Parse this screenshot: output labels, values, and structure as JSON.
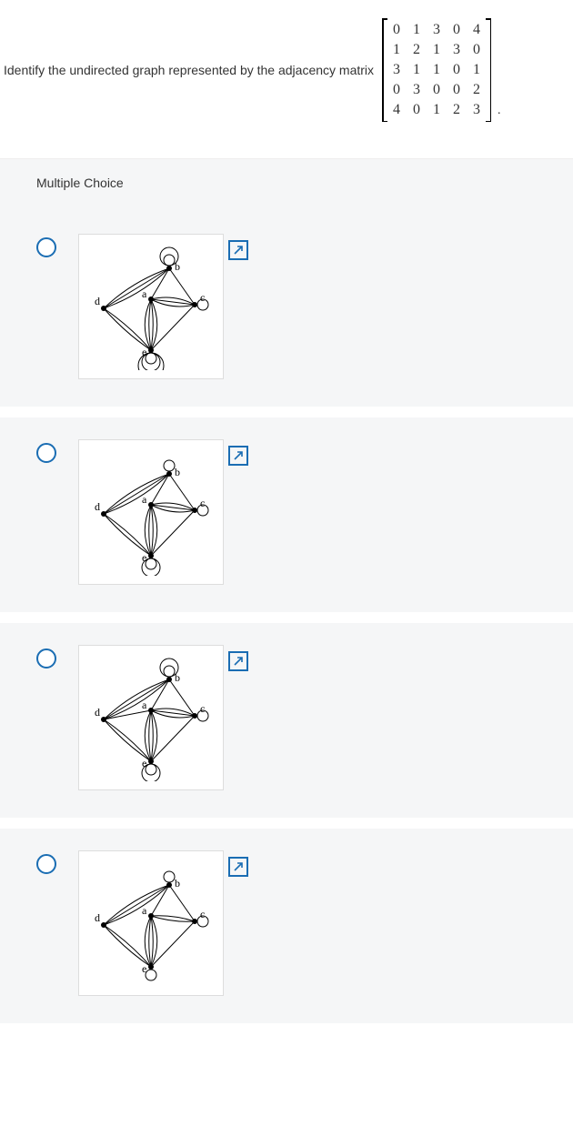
{
  "question": {
    "text": "Identify the undirected graph represented by the adjacency matrix",
    "matrix": {
      "rows": 5,
      "cols": 5,
      "values": [
        [
          0,
          1,
          3,
          0,
          4
        ],
        [
          1,
          2,
          1,
          3,
          0
        ],
        [
          3,
          1,
          1,
          0,
          1
        ],
        [
          0,
          3,
          0,
          0,
          2
        ],
        [
          4,
          0,
          1,
          2,
          3
        ]
      ]
    }
  },
  "section_label": "Multiple Choice",
  "options": [
    {
      "edges": {
        "ab": 1,
        "ac": 3,
        "ad": 0,
        "ae": 4,
        "bc": 1,
        "bd": 3,
        "be": 0,
        "cd": 0,
        "ce": 1,
        "de": 2,
        "aa": 0,
        "bb": 2,
        "cc": 1,
        "dd": 0,
        "ee": 3
      }
    },
    {
      "edges": {
        "ab": 1,
        "ac": 3,
        "ad": 0,
        "ae": 4,
        "bc": 1,
        "bd": 3,
        "be": 0,
        "cd": 0,
        "ce": 1,
        "de": 2,
        "aa": 0,
        "bb": 1,
        "cc": 1,
        "dd": 0,
        "ee": 2
      }
    },
    {
      "edges": {
        "ab": 1,
        "ac": 3,
        "ad": 1,
        "ae": 4,
        "bc": 1,
        "bd": 3,
        "be": 0,
        "cd": 0,
        "ce": 1,
        "de": 2,
        "aa": 0,
        "bb": 2,
        "cc": 1,
        "dd": 0,
        "ee": 2
      }
    },
    {
      "edges": {
        "ab": 1,
        "ac": 2,
        "ad": 0,
        "ae": 4,
        "bc": 1,
        "bd": 3,
        "be": 0,
        "cd": 0,
        "ce": 1,
        "de": 2,
        "aa": 0,
        "bb": 1,
        "cc": 1,
        "dd": 0,
        "ee": 1
      }
    }
  ],
  "vertices": [
    "a",
    "b",
    "c",
    "d",
    "e"
  ],
  "colors": {
    "radio_border": "#1a6db3",
    "expand_border": "#1a6db3",
    "option_bg": "#f5f6f7",
    "card_border": "#dddddd",
    "text": "#333333"
  }
}
